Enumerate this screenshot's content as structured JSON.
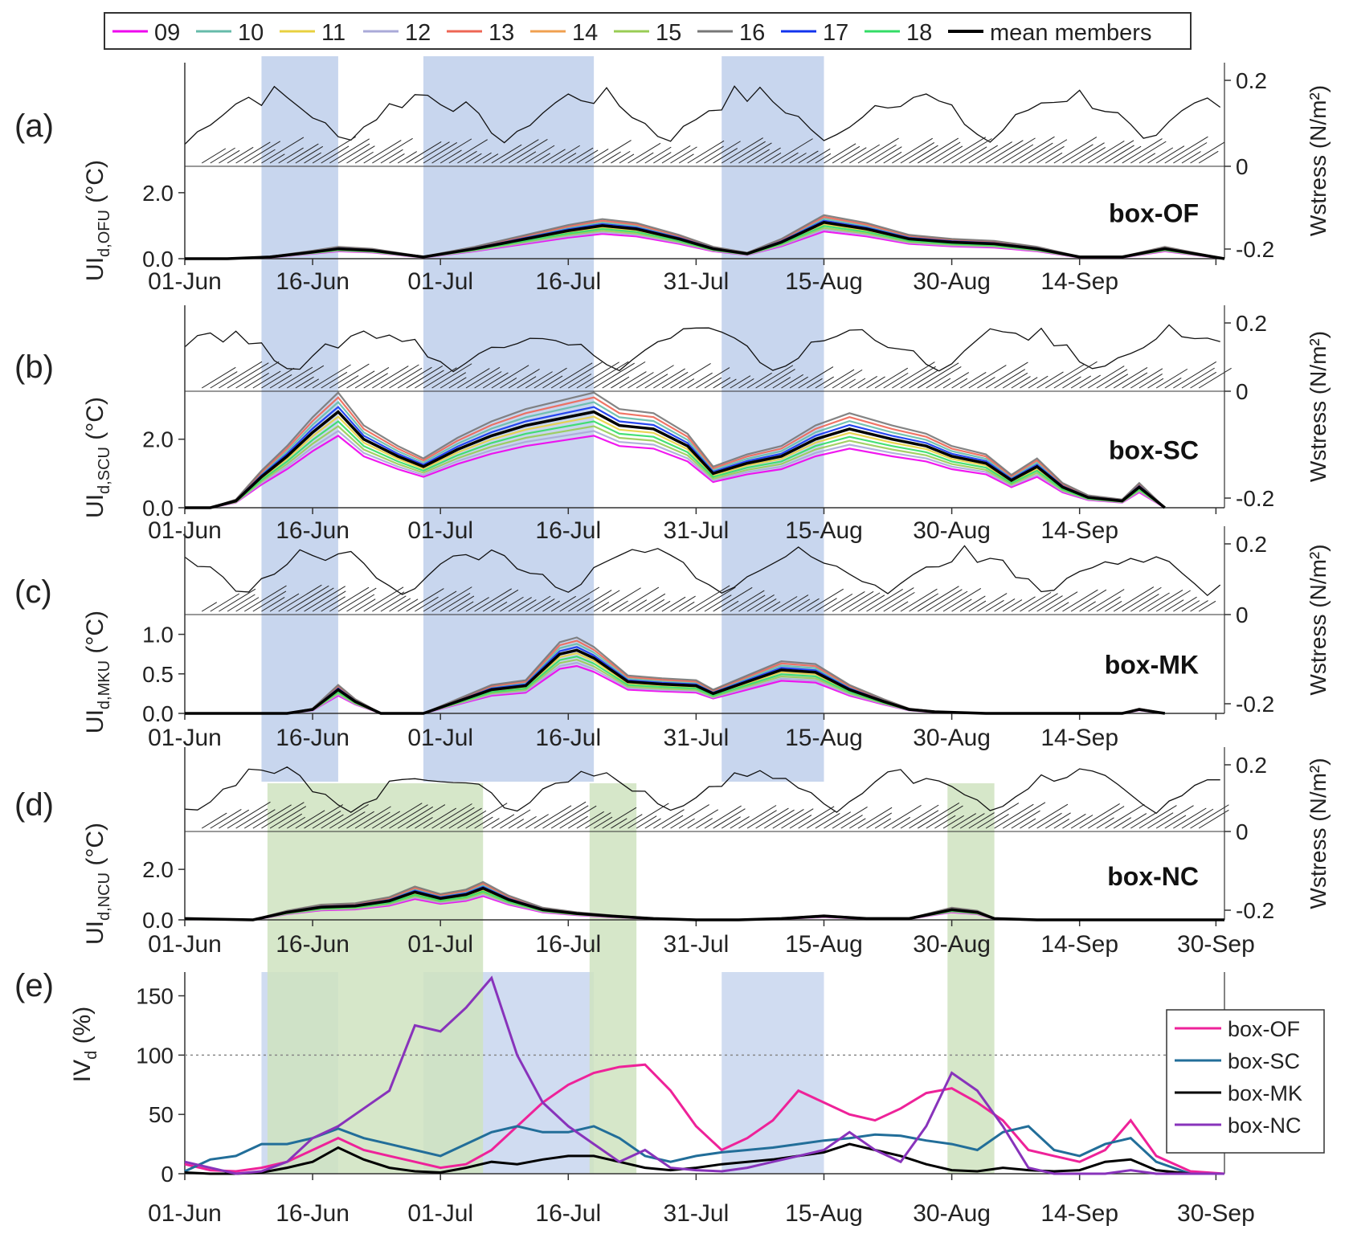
{
  "figure_legend": {
    "items": [
      {
        "label": "09",
        "color": "#ee00ee"
      },
      {
        "label": "10",
        "color": "#66bbaa"
      },
      {
        "label": "11",
        "color": "#e8d040"
      },
      {
        "label": "12",
        "color": "#aaaad8"
      },
      {
        "label": "13",
        "color": "#ee6655"
      },
      {
        "label": "14",
        "color": "#f0a050"
      },
      {
        "label": "15",
        "color": "#99cc55"
      },
      {
        "label": "16",
        "color": "#777777"
      },
      {
        "label": "17",
        "color": "#1133ee"
      },
      {
        "label": "18",
        "color": "#33dd66"
      },
      {
        "label": "mean members",
        "color": "#000000"
      }
    ]
  },
  "x_ticks": [
    "01-Jun",
    "16-Jun",
    "01-Jul",
    "16-Jul",
    "31-Jul",
    "15-Aug",
    "30-Aug",
    "14-Sep",
    "30-Sep"
  ],
  "highlight_blue_days": [
    [
      9,
      18
    ],
    [
      28,
      48
    ],
    [
      63,
      75
    ]
  ],
  "highlight_green_days": [
    [
      9.7,
      35
    ],
    [
      47.5,
      53
    ],
    [
      89.5,
      95
    ]
  ],
  "panels": [
    {
      "letter": "(a)",
      "box": "box-OF",
      "ylabel_main": "UI",
      "ylabel_sub": "d,OFU",
      "ylabel_unit": " (°C)",
      "yticks": [
        "0.0",
        "2.0"
      ],
      "yvals": [
        0,
        2
      ],
      "ylim": [
        0,
        2.8
      ],
      "wticks": [
        "0.2",
        "0",
        "-0.2"
      ],
      "wstress": "Wstress (N/m²)"
    },
    {
      "letter": "(b)",
      "box": "box-SC",
      "ylabel_main": "UI",
      "ylabel_sub": "d,SCU",
      "ylabel_unit": " (°C)",
      "yticks": [
        "0.0",
        "2.0"
      ],
      "yvals": [
        0,
        2
      ],
      "ylim": [
        0,
        3.4
      ],
      "wticks": [
        "0.2",
        "0",
        "-0.2"
      ],
      "wstress": "Wstress (N/m²)"
    },
    {
      "letter": "(c)",
      "box": "box-MK",
      "ylabel_main": "UI",
      "ylabel_sub": "d,MKU",
      "ylabel_unit": " (°C)",
      "yticks": [
        "0.0",
        "0.5",
        "1.0"
      ],
      "yvals": [
        0,
        0.5,
        1.0
      ],
      "ylim": [
        0,
        1.25
      ],
      "wticks": [
        "0.2",
        "0",
        "-0.2"
      ],
      "wstress": "Wstress (N/m²)"
    },
    {
      "letter": "(d)",
      "box": "box-NC",
      "ylabel_main": "UI",
      "ylabel_sub": "d,NCU",
      "ylabel_unit": " (°C)",
      "yticks": [
        "0.0",
        "2.0"
      ],
      "yvals": [
        0,
        2
      ],
      "ylim": [
        0,
        3.5
      ],
      "wticks": [
        "0.2",
        "0",
        "-0.2"
      ],
      "wstress": "Wstress (N/m²)"
    }
  ],
  "panel_e": {
    "letter": "(e)",
    "ylabel_main": "IV",
    "ylabel_sub": "d",
    "ylabel_unit": " (%)",
    "yticks": [
      "0",
      "50",
      "100",
      "150"
    ],
    "yvals": [
      0,
      50,
      100,
      150
    ],
    "ylim": [
      0,
      170
    ],
    "reference_line": 100,
    "legend": [
      {
        "label": "box-OF",
        "color": "#ee2299"
      },
      {
        "label": "box-SC",
        "color": "#226e99"
      },
      {
        "label": "box-MK",
        "color": "#000000"
      },
      {
        "label": "box-NC",
        "color": "#8833bb"
      }
    ]
  },
  "chart_data": [
    {
      "type": "line",
      "title": "(a) box-OF",
      "xlabel": "",
      "ylabel": "UId,OFU (°C)",
      "ylim": [
        0,
        2.8
      ],
      "x_days": [
        0,
        5,
        10,
        15,
        18,
        22,
        28,
        34,
        40,
        45,
        49,
        53,
        58,
        62,
        66,
        70,
        75,
        80,
        85,
        90,
        95,
        100,
        105,
        110,
        115,
        122
      ],
      "series": [
        {
          "name": "mean members",
          "values": [
            0,
            0,
            0.05,
            0.2,
            0.3,
            0.25,
            0.05,
            0.3,
            0.6,
            0.85,
            1.0,
            0.9,
            0.6,
            0.3,
            0.15,
            0.5,
            1.1,
            0.9,
            0.6,
            0.5,
            0.45,
            0.3,
            0.05,
            0.05,
            0.3,
            0
          ]
        }
      ]
    },
    {
      "type": "line",
      "title": "(b) box-SC",
      "xlabel": "",
      "ylabel": "UId,SCU (°C)",
      "ylim": [
        0,
        3.4
      ],
      "x_days": [
        0,
        3,
        6,
        9,
        12,
        15,
        18,
        21,
        25,
        28,
        32,
        36,
        40,
        44,
        48,
        51,
        55,
        59,
        62,
        66,
        70,
        74,
        78,
        83,
        87,
        90,
        94,
        97,
        100,
        103,
        106,
        110,
        112,
        115
      ],
      "series": [
        {
          "name": "mean members",
          "values": [
            0,
            0,
            0.2,
            0.9,
            1.5,
            2.2,
            2.8,
            2.0,
            1.5,
            1.2,
            1.7,
            2.1,
            2.4,
            2.6,
            2.8,
            2.4,
            2.3,
            1.8,
            1.0,
            1.3,
            1.5,
            2.0,
            2.3,
            2.0,
            1.8,
            1.5,
            1.3,
            0.8,
            1.2,
            0.6,
            0.3,
            0.2,
            0.6,
            0
          ]
        }
      ]
    },
    {
      "type": "line",
      "title": "(c) box-MK",
      "xlabel": "",
      "ylabel": "UId,MKU (°C)",
      "ylim": [
        0,
        1.25
      ],
      "x_days": [
        0,
        12,
        15,
        18,
        20,
        23,
        28,
        32,
        36,
        40,
        44,
        46,
        48,
        52,
        56,
        60,
        62,
        66,
        70,
        74,
        78,
        82,
        85,
        88,
        94,
        100,
        105,
        110,
        112,
        115
      ],
      "series": [
        {
          "name": "mean members",
          "values": [
            0,
            0,
            0.05,
            0.3,
            0.15,
            0,
            0,
            0.15,
            0.3,
            0.35,
            0.75,
            0.8,
            0.7,
            0.4,
            0.37,
            0.35,
            0.25,
            0.4,
            0.55,
            0.52,
            0.3,
            0.15,
            0.05,
            0.02,
            0,
            0,
            0,
            0,
            0.05,
            0
          ]
        }
      ]
    },
    {
      "type": "line",
      "title": "(d) box-NC",
      "xlabel": "",
      "ylabel": "UId,NCU (°C)",
      "ylim": [
        0,
        3.5
      ],
      "x_days": [
        0,
        8,
        12,
        16,
        20,
        24,
        27,
        30,
        33,
        35,
        38,
        42,
        46,
        50,
        55,
        60,
        65,
        70,
        75,
        80,
        85,
        90,
        93,
        95,
        100,
        110,
        122
      ],
      "series": [
        {
          "name": "mean members",
          "values": [
            0.05,
            0,
            0.3,
            0.5,
            0.55,
            0.75,
            1.1,
            0.85,
            1.0,
            1.25,
            0.8,
            0.4,
            0.25,
            0.15,
            0.05,
            0,
            0,
            0.05,
            0.15,
            0.05,
            0.05,
            0.4,
            0.3,
            0.05,
            0,
            0,
            0
          ]
        }
      ]
    },
    {
      "type": "line",
      "title": "(e)",
      "xlabel": "",
      "ylabel": "IVd (%)",
      "ylim": [
        0,
        170
      ],
      "x_days": [
        0,
        3,
        6,
        9,
        12,
        15,
        18,
        21,
        24,
        27,
        30,
        33,
        36,
        39,
        42,
        45,
        48,
        51,
        54,
        57,
        60,
        63,
        66,
        69,
        72,
        75,
        78,
        81,
        84,
        87,
        90,
        93,
        96,
        99,
        102,
        105,
        108,
        111,
        114,
        118,
        122
      ],
      "series": [
        {
          "name": "box-OF",
          "values": [
            8,
            3,
            2,
            5,
            10,
            20,
            30,
            20,
            15,
            10,
            5,
            8,
            20,
            40,
            60,
            75,
            85,
            90,
            92,
            70,
            40,
            20,
            30,
            45,
            70,
            60,
            50,
            45,
            55,
            68,
            72,
            60,
            45,
            20,
            15,
            10,
            20,
            45,
            15,
            2,
            0
          ]
        },
        {
          "name": "box-SC",
          "values": [
            2,
            12,
            15,
            25,
            25,
            30,
            38,
            30,
            25,
            20,
            15,
            25,
            35,
            40,
            35,
            35,
            40,
            30,
            15,
            10,
            15,
            18,
            20,
            22,
            25,
            28,
            30,
            33,
            32,
            28,
            25,
            20,
            35,
            40,
            20,
            15,
            25,
            30,
            10,
            0,
            0
          ]
        },
        {
          "name": "box-MK",
          "values": [
            1,
            0,
            0,
            1,
            5,
            10,
            22,
            12,
            5,
            2,
            1,
            5,
            10,
            8,
            12,
            15,
            15,
            10,
            5,
            3,
            5,
            8,
            10,
            12,
            15,
            18,
            25,
            20,
            15,
            8,
            3,
            2,
            5,
            3,
            2,
            3,
            10,
            12,
            3,
            0,
            0
          ]
        },
        {
          "name": "box-NC",
          "values": [
            10,
            5,
            0,
            2,
            10,
            30,
            40,
            55,
            70,
            125,
            120,
            140,
            165,
            100,
            60,
            40,
            25,
            10,
            20,
            5,
            3,
            2,
            5,
            10,
            15,
            20,
            35,
            20,
            10,
            40,
            85,
            70,
            40,
            5,
            0,
            0,
            0,
            3,
            0,
            0,
            0
          ]
        }
      ]
    }
  ]
}
